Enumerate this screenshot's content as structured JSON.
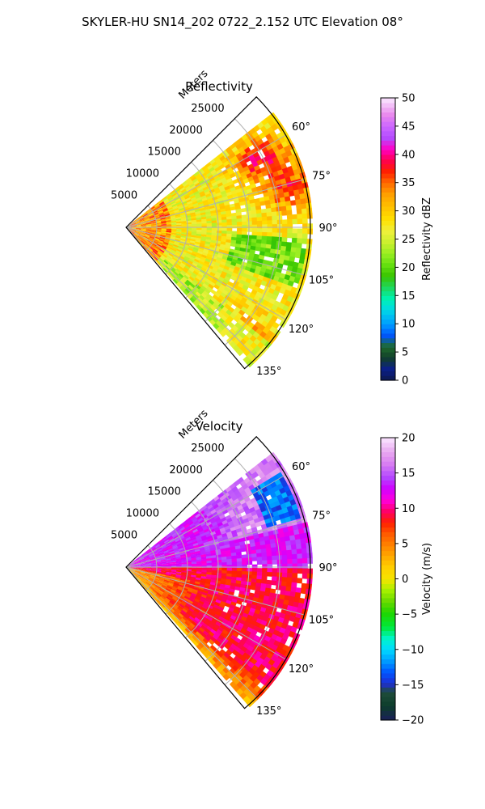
{
  "figure": {
    "suptitle": "SKYLER-HU  SN14_202  0722_2.152 UTC Elevation 08°"
  },
  "chart_data": [
    {
      "type": "heatmap",
      "projection": "polar-sector",
      "title": "Reflectivity",
      "radial_axis_label": "Meters",
      "range_max": 30000,
      "range_ticks": [
        5000,
        10000,
        15000,
        20000,
        25000
      ],
      "range_tick_labels": [
        "5000",
        "10000",
        "15000",
        "20000",
        "25000"
      ],
      "azimuth_range_deg": [
        45,
        140
      ],
      "azimuth_ticks": [
        60,
        75,
        90,
        105,
        120,
        135
      ],
      "azimuth_tick_labels": [
        "60°",
        "75°",
        "90°",
        "105°",
        "120°",
        "135°"
      ],
      "grid": true,
      "field_summary": {
        "typical_value": 27,
        "near_range_band_value": 33,
        "high_cells": [
          {
            "azimuth_deg": 62,
            "range_m": 24000,
            "value": 38
          },
          {
            "azimuth_deg": 76,
            "range_m": 27000,
            "value": 36
          },
          {
            "azimuth_deg": 133,
            "range_m": 26000,
            "value": 35
          }
        ],
        "low_region": {
          "azimuth_deg_min": 92,
          "azimuth_deg_max": 108,
          "range_m_min": 17000,
          "range_m_max": 29000,
          "value": 20
        },
        "low_edge": {
          "azimuth_deg_min": 128,
          "azimuth_deg_max": 140,
          "value": 20
        }
      },
      "colorbar": {
        "label": "Reflectivity dBZ",
        "min": 0,
        "max": 50,
        "ticks": [
          0,
          5,
          10,
          15,
          20,
          25,
          30,
          35,
          40,
          45,
          50
        ],
        "tick_labels": [
          "0",
          "5",
          "10",
          "15",
          "20",
          "25",
          "30",
          "35",
          "40",
          "45",
          "50"
        ],
        "colormap": "pyart_NWSRef"
      }
    },
    {
      "type": "heatmap",
      "projection": "polar-sector",
      "title": "Velocity",
      "radial_axis_label": "Meters",
      "range_max": 30000,
      "range_ticks": [
        5000,
        10000,
        15000,
        20000,
        25000
      ],
      "range_tick_labels": [
        "5000",
        "10000",
        "15000",
        "20000",
        "25000"
      ],
      "azimuth_range_deg": [
        45,
        140
      ],
      "azimuth_ticks": [
        60,
        75,
        90,
        105,
        120,
        135
      ],
      "azimuth_tick_labels": [
        "60°",
        "75°",
        "90°",
        "105°",
        "120°",
        "135°"
      ],
      "grid": true,
      "field_summary": {
        "north_of_90_value": 13,
        "far_northeast_value": 16,
        "south_of_90_value": 9,
        "south_near_range_value": 3,
        "south_edge_value": 1,
        "folded_region": {
          "azimuth_deg_min": 57,
          "azimuth_deg_max": 73,
          "range_m_min": 23000,
          "range_m_max": 29000,
          "value": -13
        }
      },
      "colorbar": {
        "label": "Velocity (m/s)",
        "min": -20,
        "max": 20,
        "ticks": [
          -20,
          -15,
          -10,
          -5,
          0,
          5,
          10,
          15,
          20
        ],
        "tick_labels": [
          "−20",
          "−15",
          "−10",
          "−5",
          "0",
          "5",
          "10",
          "15",
          "20"
        ],
        "colormap": "pyart_BuDRd18"
      }
    }
  ]
}
